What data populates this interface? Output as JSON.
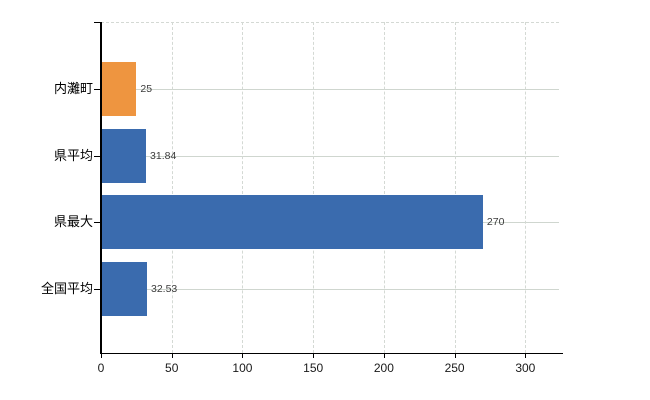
{
  "chart_data": {
    "type": "bar",
    "orientation": "horizontal",
    "title": "",
    "categories": [
      "内灘町",
      "県平均",
      "県最大",
      "全国平均"
    ],
    "values": [
      25,
      31.84,
      270,
      32.53
    ],
    "value_labels": [
      "25",
      "31.84",
      "270",
      "32.53"
    ],
    "bar_colors": [
      "#ee9540",
      "#3a6bae",
      "#3a6bae",
      "#3a6bae"
    ],
    "x_tick_values": [
      0,
      50,
      100,
      150,
      200,
      250,
      300
    ],
    "x_tick_labels": [
      "0",
      "50",
      "100",
      "150",
      "200",
      "250",
      "300"
    ],
    "xlim": [
      0,
      327
    ],
    "grid": true,
    "legend": false,
    "colors": {
      "highlight_bar": "#ee9540",
      "default_bar": "#3a6bae",
      "gridline": "#d4d9d4",
      "axis": "#000000",
      "value_label": "#3c3c3c",
      "tick_label": "#1a1a1a",
      "category_label": "#000000",
      "background": "#ffffff"
    }
  }
}
